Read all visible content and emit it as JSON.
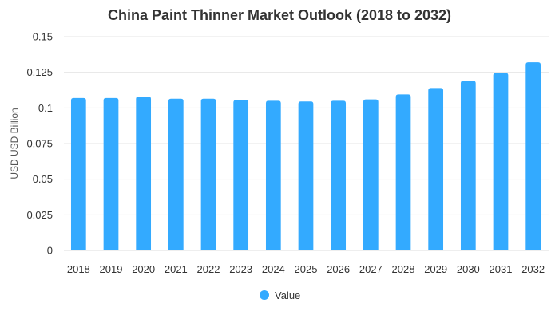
{
  "chart_data": {
    "type": "bar",
    "title": "China Paint Thinner Market Outlook (2018 to 2032)",
    "xlabel": "",
    "ylabel": "USD USD Billion",
    "categories": [
      "2018",
      "2019",
      "2020",
      "2021",
      "2022",
      "2023",
      "2024",
      "2025",
      "2026",
      "2027",
      "2028",
      "2029",
      "2030",
      "2031",
      "2032"
    ],
    "series": [
      {
        "name": "Value",
        "values": [
          0.107,
          0.107,
          0.108,
          0.1065,
          0.1065,
          0.1055,
          0.105,
          0.1045,
          0.105,
          0.106,
          0.1095,
          0.114,
          0.119,
          0.1245,
          0.132
        ]
      }
    ],
    "ylim": [
      0,
      0.15
    ],
    "yticks": [
      0,
      0.025,
      0.05,
      0.075,
      0.1,
      0.125,
      0.15
    ],
    "ytick_labels": [
      "0",
      "0.025",
      "0.05",
      "0.075",
      "0.1",
      "0.125",
      "0.15"
    ],
    "grid": true,
    "legend": "bottom",
    "colors": {
      "bar": "#33aaff"
    }
  }
}
